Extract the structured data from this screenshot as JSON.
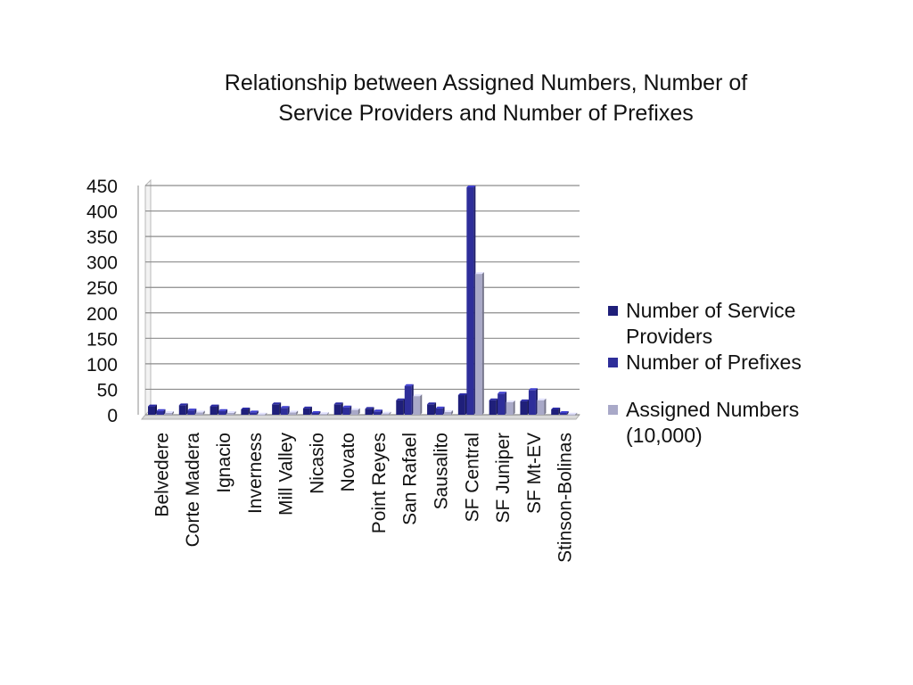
{
  "chart_data": {
    "type": "bar",
    "title_lines": [
      "Relationship between Assigned Numbers, Number of",
      "Service Providers and Number of Prefixes"
    ],
    "categories": [
      "Belvedere",
      "Corte Madera",
      "Ignacio",
      "Inverness",
      "Mill Valley",
      "Nicasio",
      "Novato",
      "Point Reyes",
      "San Rafael",
      "Sausalito",
      "SF Central",
      "SF Juniper",
      "SF Mt-EV",
      "Stinson-Bolinas"
    ],
    "series": [
      {
        "name_lines": [
          "Number of Service",
          "Providers"
        ],
        "color": "#1f1f7a",
        "values": [
          20,
          22,
          20,
          14,
          24,
          16,
          24,
          15,
          32,
          24,
          42,
          32,
          30,
          14
        ]
      },
      {
        "name_lines": [
          "Number of Prefixes"
        ],
        "color": "#2e2e9a",
        "values": [
          11,
          12,
          11,
          8,
          17,
          7,
          18,
          10,
          60,
          16,
          450,
          45,
          52,
          7
        ]
      },
      {
        "name_lines": [
          "Assigned Numbers",
          "(10,000)"
        ],
        "color": "#a9a9c8",
        "values": [
          7,
          8,
          7,
          4,
          8,
          5,
          13,
          6,
          40,
          9,
          280,
          28,
          32,
          4
        ]
      }
    ],
    "ylim": [
      0,
      450
    ],
    "yticks": [
      "0",
      "50",
      "100",
      "150",
      "200",
      "250",
      "300",
      "350",
      "400",
      "450"
    ],
    "grid": true,
    "legend_position": "right"
  }
}
